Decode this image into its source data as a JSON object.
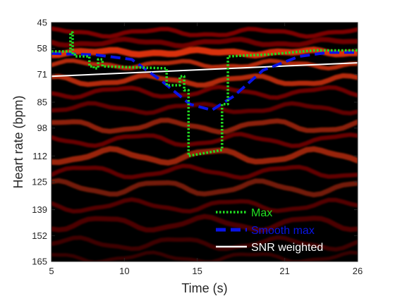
{
  "chart_data": {
    "type": "line",
    "xlabel": "Time (s)",
    "ylabel": "Heart rate (bpm)",
    "xlim": [
      5,
      26
    ],
    "ylim": [
      45,
      165
    ],
    "y_reversed": true,
    "xticks": [
      5,
      10,
      15,
      21,
      26
    ],
    "xtick_labels": [
      "5",
      "10",
      "15",
      "21",
      "26"
    ],
    "yticks": [
      45,
      58,
      71,
      85,
      98,
      112,
      125,
      139,
      152,
      165
    ],
    "ytick_labels": [
      "45",
      "58",
      "71",
      "85",
      "98",
      "112",
      "125",
      "139",
      "152",
      "165"
    ],
    "background": "spectrogram heatmap",
    "colors": {
      "max": "#22e022",
      "smooth_max": "#0a14e6",
      "snr_weighted": "#ffffff",
      "frame": "#262626",
      "heat_dark": "#000000",
      "heat_mid": "#8a0000",
      "heat_bright": "#ff3a10"
    },
    "legend": [
      {
        "name": "Max",
        "style": "dotted",
        "color": "#22e022"
      },
      {
        "name": "Smooth max",
        "style": "dashed",
        "color": "#0a14e6"
      },
      {
        "name": "SNR weighted",
        "style": "solid",
        "color": "#ffffff"
      }
    ],
    "series": [
      {
        "name": "Max",
        "x": [
          5.0,
          6.3,
          6.3,
          6.45,
          6.45,
          6.6,
          6.6,
          7.6,
          7.6,
          7.9,
          7.9,
          8.2,
          8.2,
          8.5,
          8.5,
          12.9,
          12.9,
          13.8,
          13.8,
          14.1,
          14.1,
          14.4,
          14.4,
          16.7,
          16.7,
          17.1,
          17.1,
          20.0,
          23.0,
          26.0
        ],
        "y": [
          59.5,
          59.5,
          50,
          50,
          61,
          61,
          62,
          62,
          67,
          67,
          68,
          68,
          63.5,
          63.5,
          67,
          68,
          76.5,
          76.5,
          72,
          72,
          79,
          79,
          112,
          109,
          86,
          86,
          62,
          61,
          59,
          59
        ]
      },
      {
        "name": "Smooth max",
        "x": [
          5.0,
          8.0,
          10.5,
          12.5,
          14.5,
          16.0,
          17.5,
          19.5,
          22.0,
          24.0,
          26.0
        ],
        "y": [
          60.5,
          61.2,
          63.5,
          74,
          86,
          89,
          82,
          69,
          62,
          60,
          60
        ]
      },
      {
        "name": "SNR weighted",
        "x": [
          5.0,
          26.0
        ],
        "y": [
          72,
          65.2
        ]
      }
    ]
  }
}
